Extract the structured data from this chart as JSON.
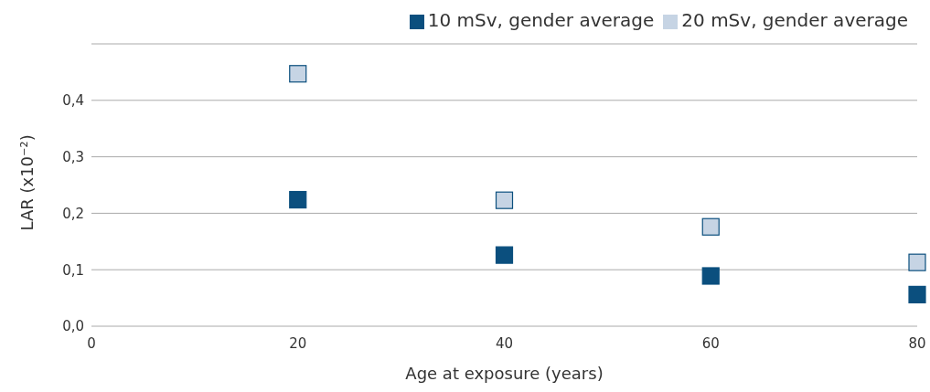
{
  "chart_data": {
    "type": "scatter",
    "xlabel": "Age at exposure (years)",
    "ylabel": "LAR (x10⁻²)",
    "x": [
      20,
      40,
      60,
      80
    ],
    "series": [
      {
        "name": "10 mSv, gender average",
        "color": "#0b4f7e",
        "values": [
          0.224,
          0.126,
          0.089,
          0.056
        ]
      },
      {
        "name": "20 mSv, gender average",
        "color": "#c6d4e4",
        "values": [
          0.447,
          0.223,
          0.176,
          0.113
        ]
      }
    ],
    "xlim": [
      0,
      80
    ],
    "xticks": [
      0,
      20,
      40,
      60,
      80
    ],
    "ylim": [
      0,
      0.5
    ],
    "yticks": [
      {
        "value": 0,
        "label": "0,0"
      },
      {
        "value": 0.1,
        "label": "0,1"
      },
      {
        "value": 0.2,
        "label": "0,2"
      },
      {
        "value": 0.3,
        "label": "0,3"
      },
      {
        "value": 0.4,
        "label": "0,4"
      },
      {
        "value": 0.5,
        "label": null
      }
    ],
    "grid": "y",
    "legend": "top right",
    "marker": "square"
  }
}
